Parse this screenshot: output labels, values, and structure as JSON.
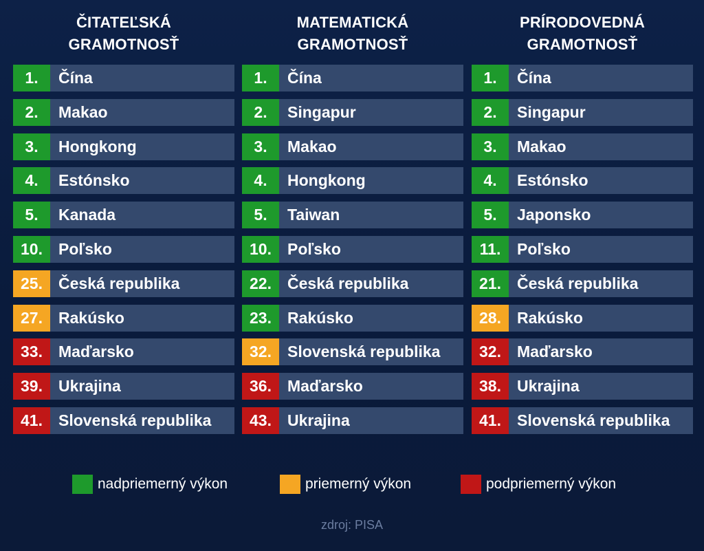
{
  "chart_data": {
    "type": "table",
    "columns": [
      {
        "title_line1": "ČITATEĽSKÁ",
        "title_line2": "GRAMOTNOSŤ",
        "rows": [
          {
            "rank": "1.",
            "country": "Čína",
            "level": "above"
          },
          {
            "rank": "2.",
            "country": "Makao",
            "level": "above"
          },
          {
            "rank": "3.",
            "country": "Hongkong",
            "level": "above"
          },
          {
            "rank": "4.",
            "country": "Estónsko",
            "level": "above"
          },
          {
            "rank": "5.",
            "country": "Kanada",
            "level": "above"
          },
          {
            "rank": "10.",
            "country": "Poľsko",
            "level": "above"
          },
          {
            "rank": "25.",
            "country": "Česká republika",
            "level": "average"
          },
          {
            "rank": "27.",
            "country": "Rakúsko",
            "level": "average"
          },
          {
            "rank": "33.",
            "country": "Maďarsko",
            "level": "below"
          },
          {
            "rank": "39.",
            "country": "Ukrajina",
            "level": "below"
          },
          {
            "rank": "41.",
            "country": "Slovenská republika",
            "level": "below"
          }
        ]
      },
      {
        "title_line1": "MATEMATICKÁ",
        "title_line2": "GRAMOTNOSŤ",
        "rows": [
          {
            "rank": "1.",
            "country": "Čína",
            "level": "above"
          },
          {
            "rank": "2.",
            "country": "Singapur",
            "level": "above"
          },
          {
            "rank": "3.",
            "country": "Makao",
            "level": "above"
          },
          {
            "rank": "4.",
            "country": "Hongkong",
            "level": "above"
          },
          {
            "rank": "5.",
            "country": "Taiwan",
            "level": "above"
          },
          {
            "rank": "10.",
            "country": "Poľsko",
            "level": "above"
          },
          {
            "rank": "22.",
            "country": "Česká republika",
            "level": "above"
          },
          {
            "rank": "23.",
            "country": "Rakúsko",
            "level": "above"
          },
          {
            "rank": "32.",
            "country": "Slovenská republika",
            "level": "average"
          },
          {
            "rank": "36.",
            "country": "Maďarsko",
            "level": "below"
          },
          {
            "rank": "43.",
            "country": "Ukrajina",
            "level": "below"
          }
        ]
      },
      {
        "title_line1": "PRÍRODOVEDNÁ",
        "title_line2": "GRAMOTNOSŤ",
        "rows": [
          {
            "rank": "1.",
            "country": "Čína",
            "level": "above"
          },
          {
            "rank": "2.",
            "country": "Singapur",
            "level": "above"
          },
          {
            "rank": "3.",
            "country": "Makao",
            "level": "above"
          },
          {
            "rank": "4.",
            "country": "Estónsko",
            "level": "above"
          },
          {
            "rank": "5.",
            "country": "Japonsko",
            "level": "above"
          },
          {
            "rank": "11.",
            "country": "Poľsko",
            "level": "above"
          },
          {
            "rank": "21.",
            "country": "Česká republika",
            "level": "above"
          },
          {
            "rank": "28.",
            "country": "Rakúsko",
            "level": "average"
          },
          {
            "rank": "32.",
            "country": "Maďarsko",
            "level": "below"
          },
          {
            "rank": "38.",
            "country": "Ukrajina",
            "level": "below"
          },
          {
            "rank": "41.",
            "country": "Slovenská republika",
            "level": "below"
          }
        ]
      }
    ],
    "legend": [
      {
        "level": "above",
        "label": "nadpriemerný výkon",
        "color": "#1e9a2c"
      },
      {
        "level": "average",
        "label": "priemerný výkon",
        "color": "#f5a623"
      },
      {
        "level": "below",
        "label": "podpriemerný výkon",
        "color": "#c01717"
      }
    ],
    "source": "zdroj: PISA"
  },
  "colors": {
    "background": "#0b1d40",
    "row_background": "#34496d",
    "above": "#1e9a2c",
    "average": "#f5a623",
    "below": "#c01717"
  }
}
